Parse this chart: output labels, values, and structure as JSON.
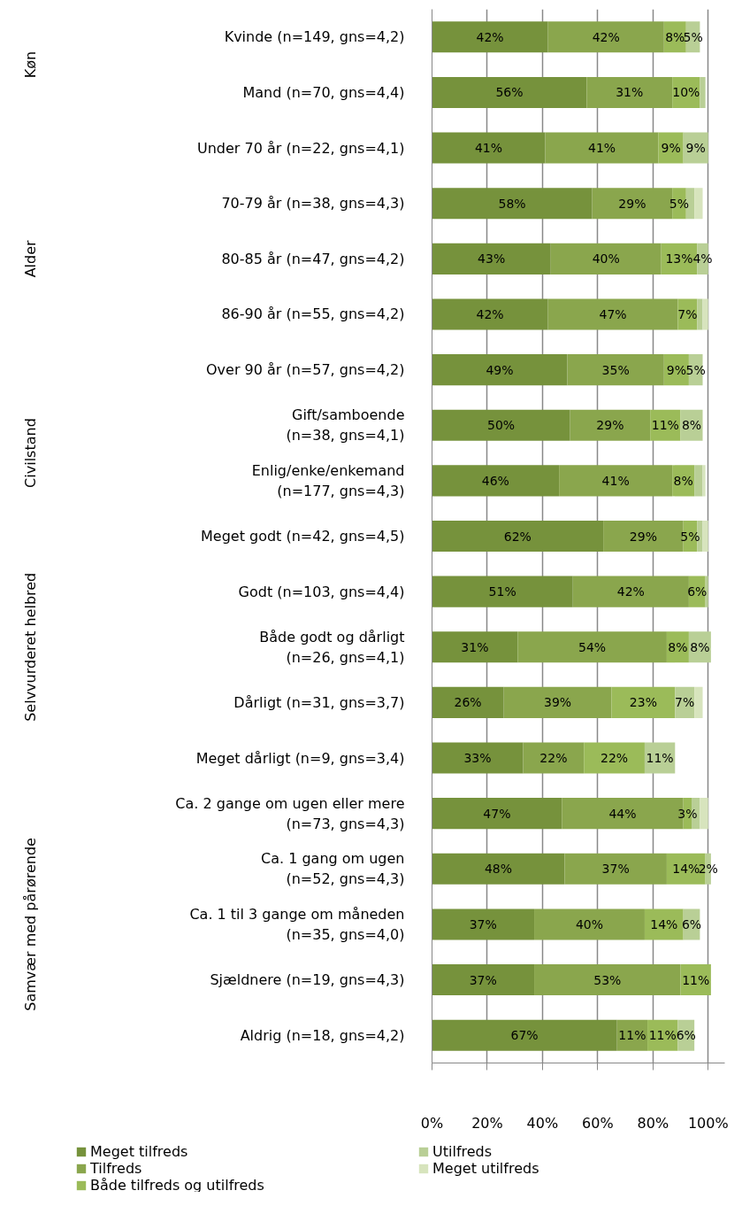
{
  "chart_data": {
    "type": "bar",
    "orientation": "horizontal",
    "stacked": true,
    "categories": [
      "Kvinde (n=149, gns=4,2)",
      "Mand (n=70, gns=4,4)",
      "Under 70 år (n=22, gns=4,1)",
      "70-79 år (n=38, gns=4,3)",
      "80-85 år (n=47, gns=4,2)",
      "86-90 år (n=55, gns=4,2)",
      "Over 90 år (n=57, gns=4,2)",
      "Gift/samboende\n(n=38, gns=4,1)",
      "Enlig/enke/enkemand\n(n=177, gns=4,3)",
      "Meget godt (n=42, gns=4,5)",
      "Godt (n=103, gns=4,4)",
      "Både godt og dårligt\n(n=26, gns=4,1)",
      "Dårligt (n=31, gns=3,7)",
      "Meget dårligt (n=9, gns=3,4)",
      "Ca. 2 gange om ugen eller mere\n(n=73, gns=4,3)",
      "Ca. 1 gang om ugen\n(n=52, gns=4,3)",
      "Ca. 1 til 3 gange om måneden\n(n=35, gns=4,0)",
      "Sjældnere (n=19, gns=4,3)",
      "Aldrig (n=18, gns=4,2)"
    ],
    "series": [
      {
        "name": "Meget tilfreds",
        "color": "#76923c",
        "values": [
          42,
          56,
          41,
          58,
          43,
          42,
          49,
          50,
          46,
          62,
          51,
          31,
          26,
          33,
          47,
          48,
          37,
          37,
          67
        ],
        "value_labels": [
          "42%",
          "56%",
          "41%",
          "58%",
          "43%",
          "42%",
          "49%",
          "50%",
          "46%",
          "62%",
          "51%",
          "31%",
          "26%",
          "33%",
          "47%",
          "48%",
          "37%",
          "37%",
          "67%"
        ]
      },
      {
        "name": "Tilfreds",
        "color": "#8aa64d",
        "values": [
          42,
          31,
          41,
          29,
          40,
          47,
          35,
          29,
          41,
          29,
          42,
          54,
          39,
          22,
          44,
          37,
          40,
          53,
          11
        ],
        "value_labels": [
          "42%",
          "31%",
          "41%",
          "29%",
          "40%",
          "47%",
          "35%",
          "29%",
          "41%",
          "29%",
          "42%",
          "54%",
          "39%",
          "22%",
          "44%",
          "37%",
          "40%",
          "53%",
          "11%"
        ]
      },
      {
        "name": "Både tilfreds og utilfreds",
        "color": "#9bbb59",
        "values": [
          8,
          10,
          9,
          5,
          13,
          7,
          9,
          11,
          8,
          5,
          6,
          8,
          23,
          22,
          3,
          14,
          14,
          11,
          11
        ],
        "value_labels": [
          "8%",
          "10%",
          "9%",
          "5%",
          "13%",
          "7%",
          "9%",
          "11%",
          "8%",
          "5%",
          "6%",
          "8%",
          "23%",
          "22%",
          "3%",
          "14%",
          "14%",
          "11%",
          "11%"
        ]
      },
      {
        "name": "Utilfreds",
        "color": "#b9cf96",
        "values": [
          5,
          2,
          9,
          3,
          4,
          2,
          5,
          8,
          3,
          2,
          1,
          8,
          7,
          11,
          3,
          2,
          6,
          null,
          6
        ],
        "value_labels": [
          "5%",
          null,
          "9%",
          null,
          "4%",
          null,
          "5%",
          "8%",
          null,
          null,
          null,
          "8%",
          "7%",
          "11%",
          null,
          "2%",
          "6%",
          null,
          "6%"
        ]
      },
      {
        "name": "Meget utilfreds",
        "color": "#d7e4bd",
        "values": [
          null,
          null,
          null,
          3,
          null,
          2,
          null,
          null,
          1,
          2,
          null,
          null,
          3,
          null,
          3,
          null,
          null,
          null,
          null
        ]
      }
    ],
    "xlim": [
      0,
      106
    ],
    "xticks": [
      {
        "value": 0,
        "label": "0%"
      },
      {
        "value": 20,
        "label": "20%"
      },
      {
        "value": 40,
        "label": "40%"
      },
      {
        "value": 60,
        "label": "60%"
      },
      {
        "value": 80,
        "label": "80%"
      },
      {
        "value": 100,
        "label": "100%"
      }
    ],
    "grid": "x",
    "legend": "bottom",
    "annotations": [
      "Køn",
      "Alder",
      "Civilstand",
      "Selvvurderet helbred",
      "Samvær med pårørende"
    ]
  }
}
